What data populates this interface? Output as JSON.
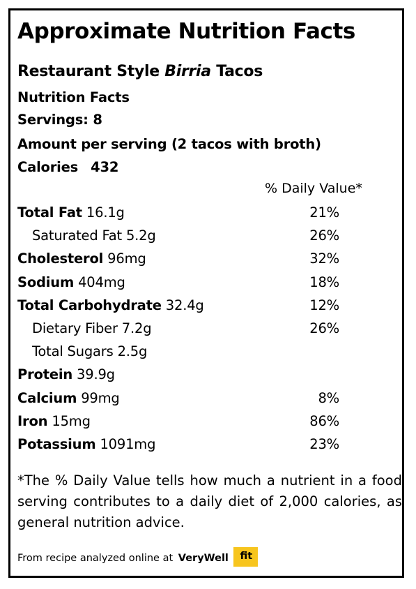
{
  "header": {
    "title": "Approximate Nutrition Facts",
    "recipe_prefix": "Restaurant Style ",
    "recipe_italic": "Birria",
    "recipe_suffix": " Tacos",
    "nutrition_facts": "Nutrition Facts",
    "servings": "Servings: 8",
    "amount_per_serving": "Amount per serving (2 tacos with broth)",
    "calories_label": "Calories",
    "calories_value": "432",
    "daily_value_header": "% Daily Value*"
  },
  "nutrients": [
    {
      "name": "Total Fat",
      "amount": " 16.1g",
      "dv": "21%",
      "bold": true,
      "indent": false
    },
    {
      "name": "Saturated Fat 5.2g",
      "amount": "",
      "dv": "26%",
      "bold": false,
      "indent": true
    },
    {
      "name": "Cholesterol",
      "amount": " 96mg",
      "dv": "32%",
      "bold": true,
      "indent": false
    },
    {
      "name": "Sodium",
      "amount": " 404mg",
      "dv": "18%",
      "bold": true,
      "indent": false
    },
    {
      "name": "Total Carbohydrate",
      "amount": " 32.4g",
      "dv": "12%",
      "bold": true,
      "indent": false
    },
    {
      "name": "Dietary Fiber 7.2g",
      "amount": "",
      "dv": "26%",
      "bold": false,
      "indent": true
    },
    {
      "name": "Total Sugars 2.5g",
      "amount": "",
      "dv": "",
      "bold": false,
      "indent": true
    },
    {
      "name": "Protein",
      "amount": " 39.9g",
      "dv": "",
      "bold": true,
      "indent": false
    },
    {
      "name": "Calcium",
      "amount": " 99mg",
      "dv": "8%",
      "bold": true,
      "indent": false
    },
    {
      "name": "Iron",
      "amount": " 15mg",
      "dv": "86%",
      "bold": true,
      "indent": false
    },
    {
      "name": "Potassium",
      "amount": " 1091mg",
      "dv": "23%",
      "bold": true,
      "indent": false
    }
  ],
  "footnote": "*The % Daily Value tells how much a nutrient in a food serving contributes to a daily diet of 2,000 calories, as general nutrition advice.",
  "source": {
    "text": "From recipe analyzed online at",
    "brand": "VeryWell",
    "logo": "fit",
    "logo_color": "#f7c51e"
  }
}
